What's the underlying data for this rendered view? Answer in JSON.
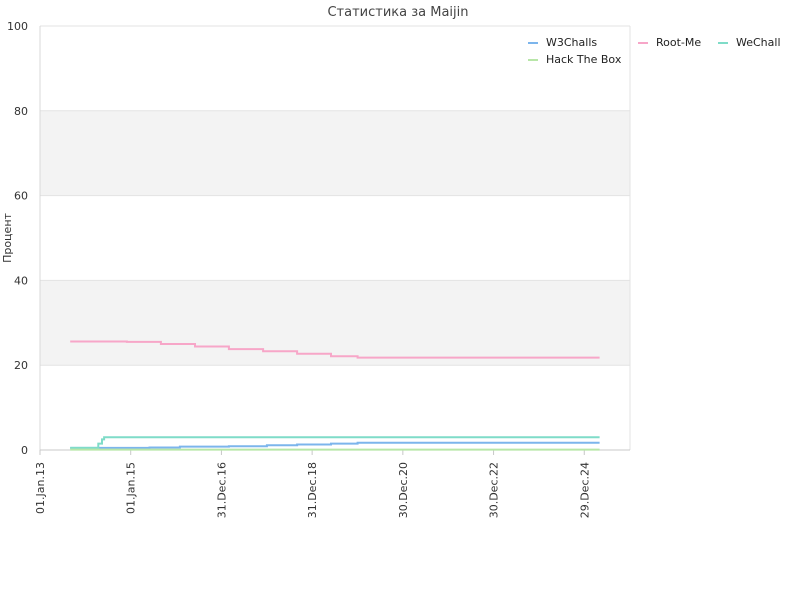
{
  "chart_data": {
    "type": "line",
    "title": "Статистика за Maijin",
    "xlabel": "",
    "ylabel": "Процент",
    "ylim": [
      0,
      100
    ],
    "yticks": [
      0,
      20,
      40,
      60,
      80,
      100
    ],
    "xlim": [
      "2013-01-01",
      "2026-01-01"
    ],
    "xticks": [
      {
        "date": "2013-01-01",
        "label": "01.Jan.13"
      },
      {
        "date": "2015-01-01",
        "label": "01.Jan.15"
      },
      {
        "date": "2016-12-31",
        "label": "31.Dec.16"
      },
      {
        "date": "2018-12-31",
        "label": "31.Dec.18"
      },
      {
        "date": "2020-12-30",
        "label": "30.Dec.20"
      },
      {
        "date": "2022-12-30",
        "label": "30.Dec.22"
      },
      {
        "date": "2024-12-29",
        "label": "29.Dec.24"
      }
    ],
    "grid": true,
    "alternate_bands": true,
    "legend_position": "top-right",
    "series": [
      {
        "name": "W3Challs",
        "color": "#7cb5ec",
        "points": [
          [
            "2013-09-01",
            0.5
          ],
          [
            "2014-09-01",
            0.5
          ],
          [
            "2015-06-01",
            0.6
          ],
          [
            "2016-02-01",
            0.8
          ],
          [
            "2017-03-01",
            0.9
          ],
          [
            "2018-01-01",
            1.1
          ],
          [
            "2018-09-01",
            1.3
          ],
          [
            "2019-06-01",
            1.5
          ],
          [
            "2020-01-01",
            1.7
          ],
          [
            "2022-06-01",
            1.7
          ],
          [
            "2025-05-01",
            1.7
          ]
        ]
      },
      {
        "name": "Root-Me",
        "color": "#f7a6c8",
        "points": [
          [
            "2013-09-01",
            25.6
          ],
          [
            "2014-12-01",
            25.5
          ],
          [
            "2015-09-01",
            25.0
          ],
          [
            "2016-06-01",
            24.4
          ],
          [
            "2017-03-01",
            23.8
          ],
          [
            "2017-12-01",
            23.3
          ],
          [
            "2018-09-01",
            22.7
          ],
          [
            "2019-06-01",
            22.1
          ],
          [
            "2020-01-01",
            21.8
          ],
          [
            "2022-06-01",
            21.8
          ],
          [
            "2025-05-01",
            21.8
          ]
        ]
      },
      {
        "name": "WeChall",
        "color": "#7fdcc8",
        "points": [
          [
            "2013-09-01",
            0.5
          ],
          [
            "2014-04-01",
            0.5
          ],
          [
            "2014-04-15",
            1.5
          ],
          [
            "2014-05-15",
            2.5
          ],
          [
            "2014-06-01",
            3.0
          ],
          [
            "2018-01-01",
            3.0
          ],
          [
            "2022-01-01",
            3.0
          ],
          [
            "2025-05-01",
            3.0
          ]
        ]
      },
      {
        "name": "Hack The Box",
        "color": "#b8e6a8",
        "points": [
          [
            "2013-09-01",
            0.1
          ],
          [
            "2019-01-01",
            0.1
          ],
          [
            "2025-05-01",
            0.1
          ]
        ]
      }
    ]
  }
}
